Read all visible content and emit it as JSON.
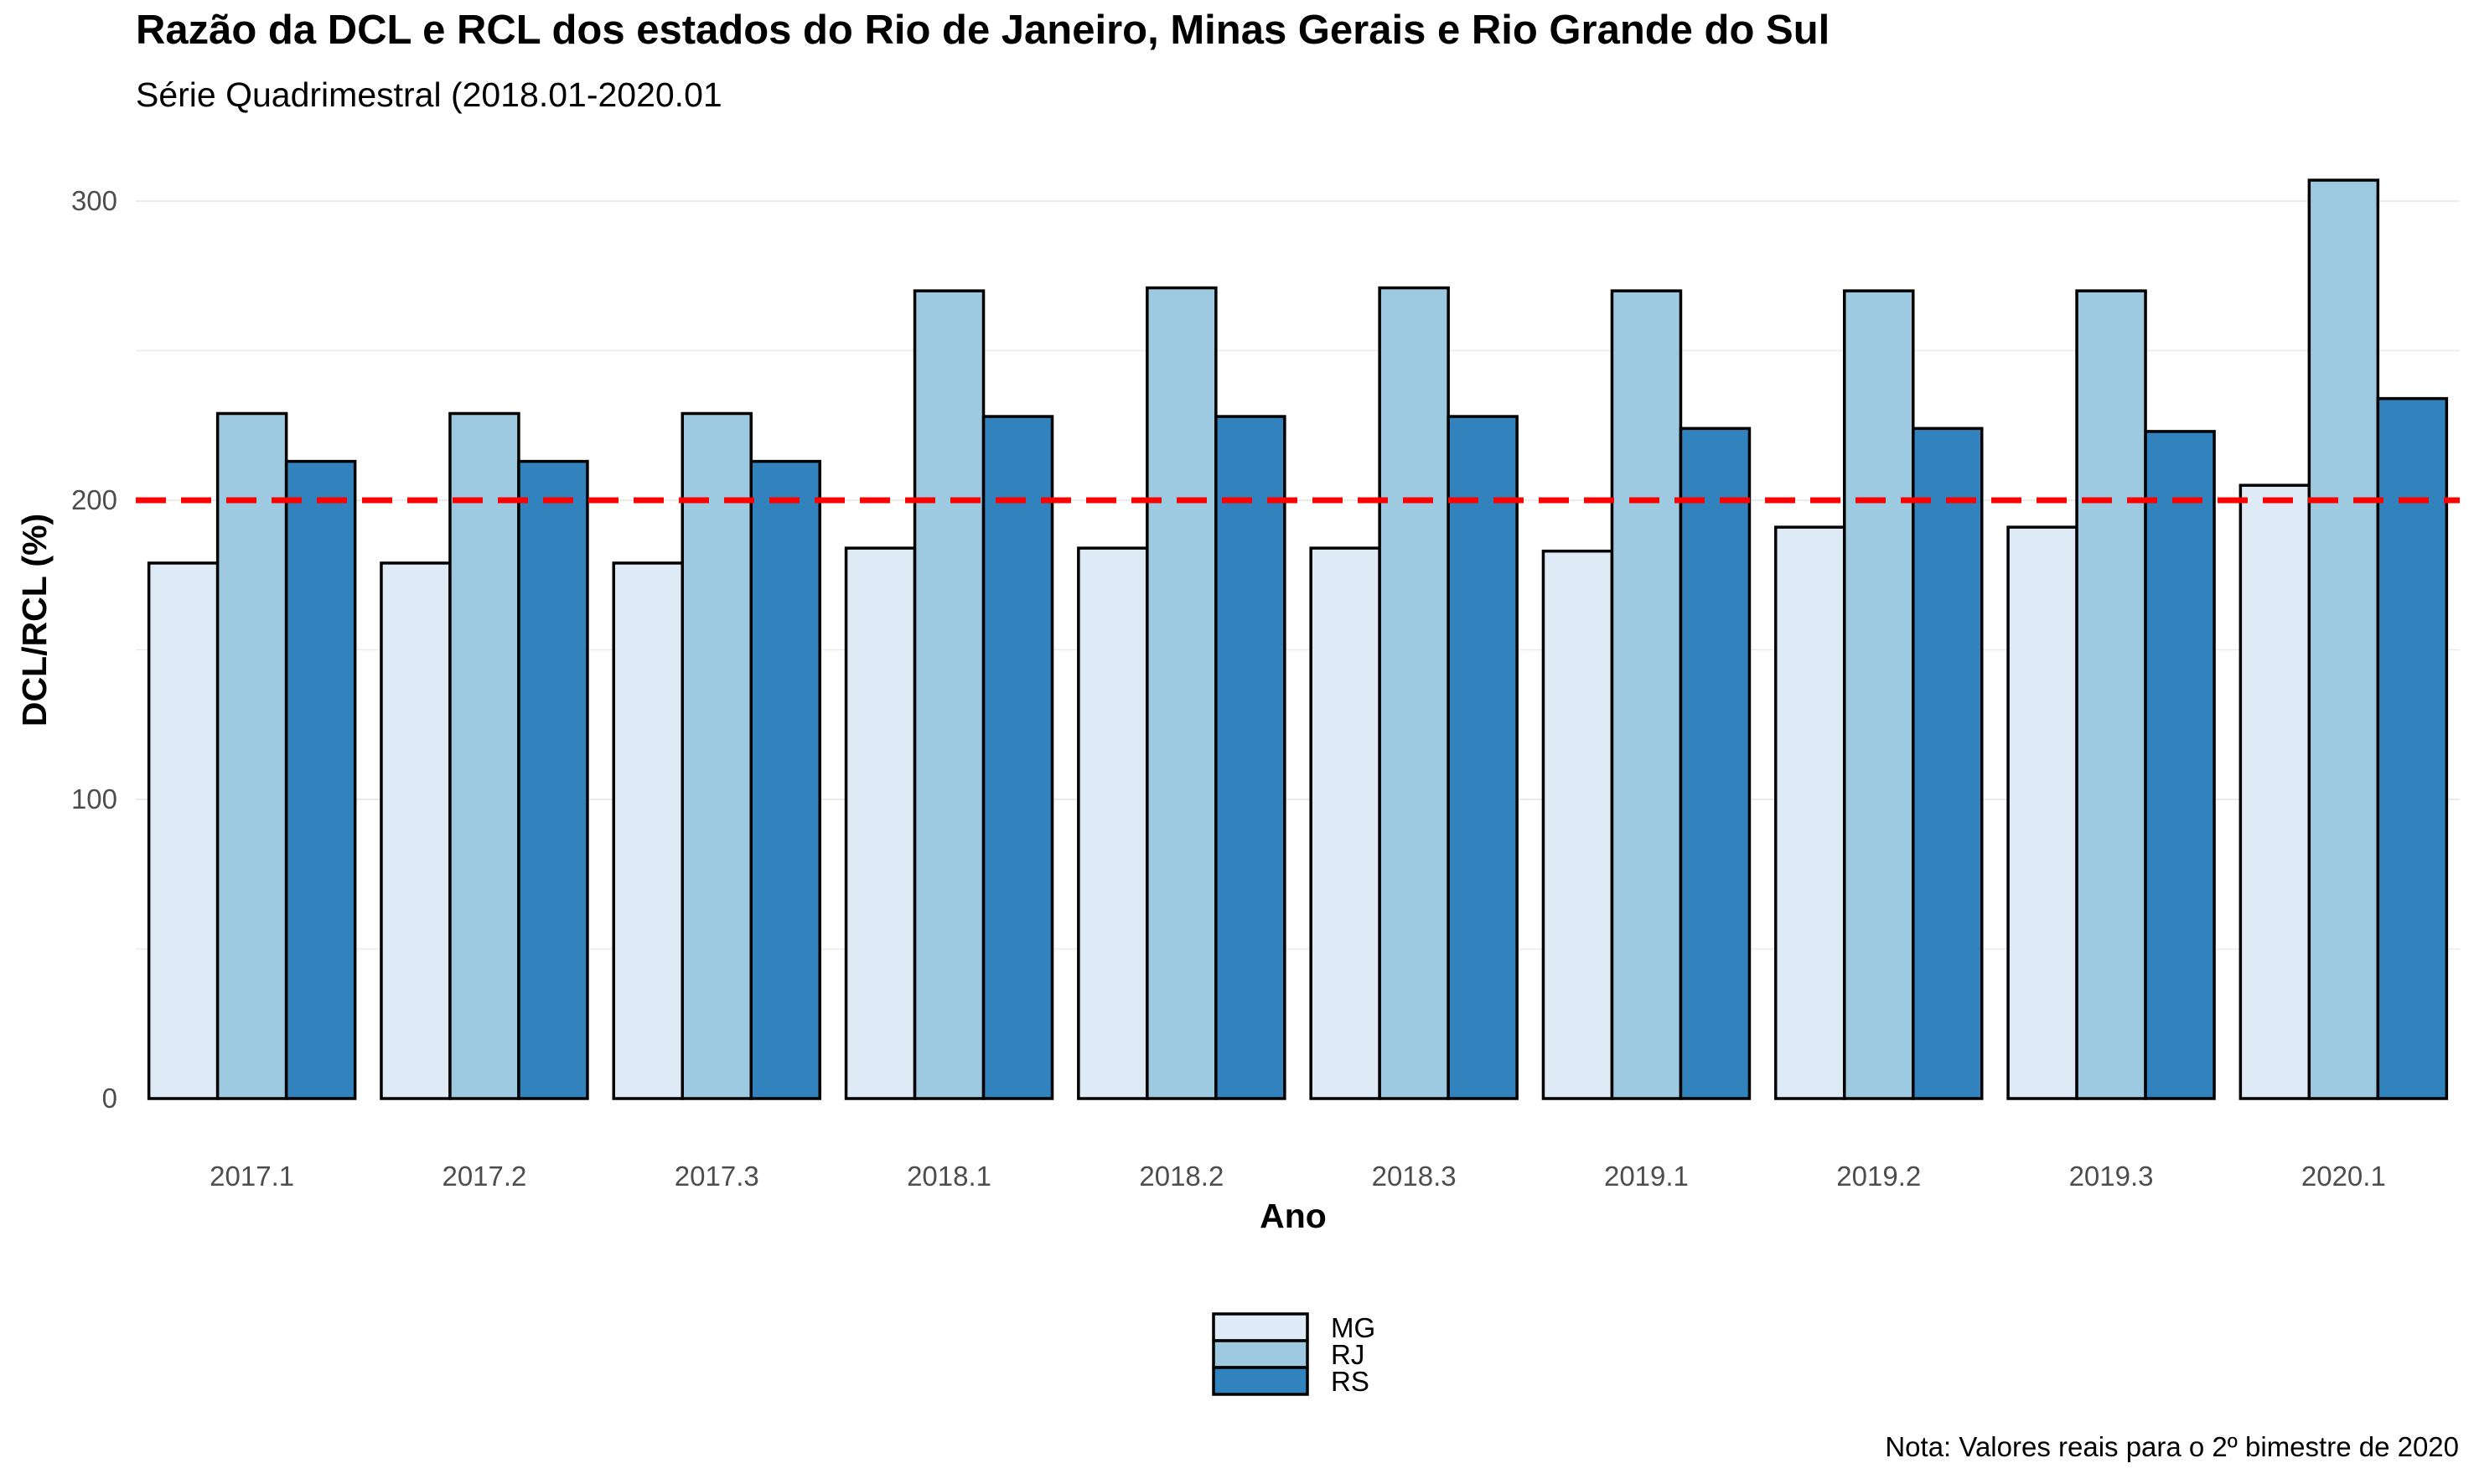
{
  "chart_data": {
    "type": "bar",
    "title": "Razão da DCL e RCL dos estados do Rio de Janeiro, Minas Gerais e Rio Grande do Sul",
    "subtitle": "Série Quadrimestral (2018.01-2020.01",
    "xlabel": "Ano",
    "ylabel": "DCL/RCL (%)",
    "ylim": [
      0,
      310
    ],
    "yticks": [
      0,
      100,
      200,
      300
    ],
    "grid": true,
    "legend_position": "bottom",
    "categories": [
      "2017.1",
      "2017.2",
      "2017.3",
      "2018.1",
      "2018.2",
      "2018.3",
      "2019.1",
      "2019.2",
      "2019.3",
      "2020.1"
    ],
    "series": [
      {
        "name": "MG",
        "color": "#deebf7",
        "values": [
          179,
          179,
          179,
          184,
          184,
          184,
          183,
          191,
          191,
          205
        ]
      },
      {
        "name": "RJ",
        "color": "#9ecae1",
        "values": [
          229,
          229,
          229,
          270,
          271,
          271,
          270,
          270,
          270,
          307
        ]
      },
      {
        "name": "RS",
        "color": "#3182bd",
        "values": [
          213,
          213,
          213,
          228,
          228,
          228,
          224,
          224,
          223,
          234
        ]
      }
    ],
    "reference_line": {
      "value": 200,
      "style": "dashed",
      "color": "#ff0000"
    },
    "note": "Nota: Valores reais para o 2º bimestre de 2020"
  }
}
